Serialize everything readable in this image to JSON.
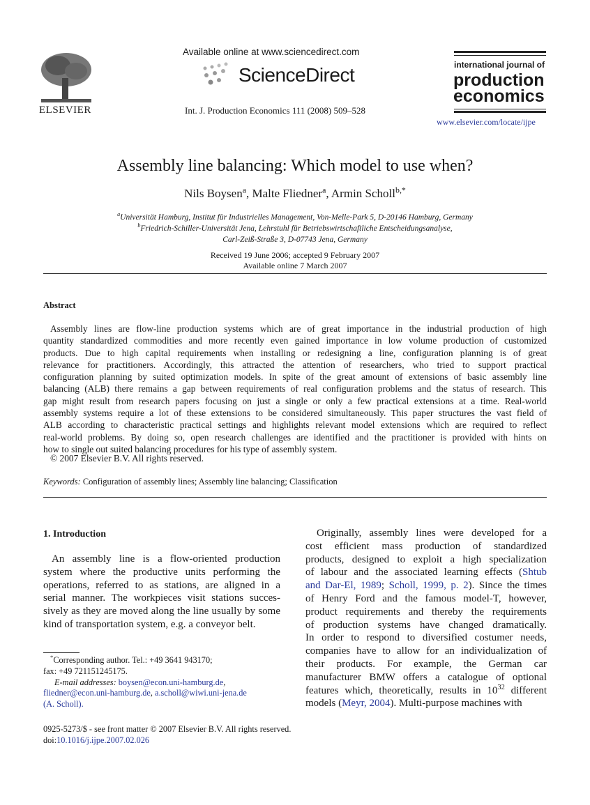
{
  "header": {
    "publisher": "ELSEVIER",
    "available_online": "Available online at www.sciencedirect.com",
    "sciencedirect": "ScienceDirect",
    "citation": "Int. J. Production Economics 111 (2008) 509–528",
    "journal_line1": "international journal of",
    "journal_line2": "production",
    "journal_line3": "economics",
    "journal_url": "www.elsevier.com/locate/ijpe"
  },
  "article": {
    "title": "Assembly line balancing: Which model to use when?",
    "authors": [
      {
        "name": "Nils Boysen",
        "sup": "a"
      },
      {
        "name": "Malte Fliedner",
        "sup": "a"
      },
      {
        "name": "Armin Scholl",
        "sup": "b,*"
      }
    ],
    "affiliations": [
      {
        "sup": "a",
        "text": "Universität Hamburg, Institut für Industrielles Management, Von-Melle-Park 5, D-20146 Hamburg, Germany"
      },
      {
        "sup": "b",
        "text": "Friedrich-Schiller-Universität Jena, Lehrstuhl für Betriebswirtschaftliche Entscheidungsanalyse,"
      },
      {
        "sup": "",
        "text": "Carl-Zeiß-Straße 3, D-07743 Jena, Germany"
      }
    ],
    "received": "Received 19 June 2006; accepted 9 February 2007",
    "available": "Available online 7 March 2007"
  },
  "abstract": {
    "heading": "Abstract",
    "lines": [
      "Assembly lines are flow-line production systems which are of great importance in the industrial production of high",
      "quantity standardized commodities and more recently even gained importance in low volume production of customized",
      "products. Due to high capital requirements when installing or redesigning a line, configuration planning is of great",
      "relevance for practitioners. Accordingly, this attracted the attention of researchers, who tried to support practical",
      "configuration planning by suited optimization models. In spite of the great amount of extensions of basic assembly line",
      "balancing (ALB) there remains a gap between requirements of real configuration problems and the status of research. This",
      "gap might result from research papers focusing on just a single or only a few practical extensions at a time. Real-world",
      "assembly systems require a lot of these extensions to be considered simultaneously. This paper structures the vast field of",
      "ALB according to characteristic practical settings and highlights relevant model extensions which are required to reflect",
      "real-world problems. By doing so, open research challenges are identified and the practitioner is provided with hints on",
      "how to single out suited balancing procedures for his type of assembly system."
    ],
    "copyright": "© 2007 Elsevier B.V. All rights reserved.",
    "keywords_label": "Keywords:",
    "keywords": "Configuration of assembly lines; Assembly line balancing; Classification"
  },
  "intro": {
    "heading": "1.  Introduction",
    "left_lines": [
      "An assembly line is a flow-oriented production",
      "system where the productive units performing the",
      "operations, referred to as stations, are aligned in a",
      "serial manner. The workpieces visit stations succes-",
      "sively as they are moved along the line usually by some",
      "kind of transportation system, e.g. a conveyor belt."
    ],
    "right_lines": [
      [
        "Originally, assembly lines were developed for a"
      ],
      [
        "cost efficient mass production of standardized"
      ],
      [
        "products, designed to exploit a high specialization"
      ],
      [
        "of labour and the associated learning effects (",
        {
          "link": "Shtub"
        }
      ],
      [
        {
          "link": "and Dar-El, 1989"
        },
        "; ",
        {
          "link": "Scholl, 1999, p. 2"
        },
        "). Since the times"
      ],
      [
        "of Henry Ford and the famous model-T, however,"
      ],
      [
        "product requirements and thereby the requirements"
      ],
      [
        "of production systems have changed dramatically."
      ],
      [
        "In order to respond to diversified costumer needs,"
      ],
      [
        "companies have to allow for an individualization of"
      ],
      [
        "their products. For example, the German car"
      ],
      [
        "manufacturer BMW offers a catalogue of optional"
      ],
      [
        "features which, theoretically, results in 10",
        {
          "sup": "32"
        },
        " different"
      ],
      [
        "models (",
        {
          "link": "Meyr, 2004"
        },
        "). Multi-purpose machines with"
      ]
    ]
  },
  "footnote": {
    "corresponding": "Corresponding author. Tel.:  +49 3641 943170;",
    "star": "*",
    "fax": "fax:  +49 721151245175.",
    "email_label": "E-mail addresses:",
    "email1": "boysen@econ.uni-hamburg.de",
    "email2": "fliedner@econ.uni-hamburg.de",
    "email3": "a.scholl@wiwi.uni-jena.de",
    "email_owner": "(A. Scholl)."
  },
  "footer": {
    "issn": "0925-5273/$ - see front matter © 2007 Elsevier B.V. All rights reserved.",
    "doi_label": "doi:",
    "doi": "10.1016/j.ijpe.2007.02.026"
  },
  "colors": {
    "link": "#2a3a9a",
    "text": "#1a1a1a"
  }
}
